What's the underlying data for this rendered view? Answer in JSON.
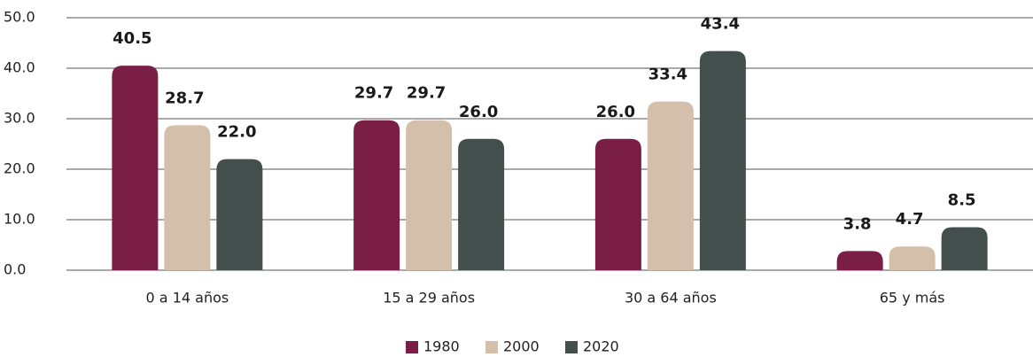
{
  "chart_data": {
    "type": "bar",
    "categories": [
      "0 a 14 años",
      "15 a 29 años",
      "30 a 64 años",
      "65 y más"
    ],
    "series": [
      {
        "name": "1980",
        "color": "#7b1e45",
        "values": [
          40.5,
          29.7,
          26.0,
          3.8
        ],
        "value_labels": [
          "40.5",
          "29.7",
          "26.0",
          "3.8"
        ]
      },
      {
        "name": "2000",
        "color": "#d4bfab",
        "values": [
          28.7,
          29.7,
          33.4,
          4.7
        ],
        "value_labels": [
          "28.7",
          "29.7",
          "33.4",
          "4.7"
        ]
      },
      {
        "name": "2020",
        "color": "#434f4d",
        "values": [
          22.0,
          26.0,
          43.4,
          8.5
        ],
        "value_labels": [
          "22.0",
          "26.0",
          "43.4",
          "8.5"
        ]
      }
    ],
    "ylim": [
      0,
      50
    ],
    "yticks": [
      {
        "value": 0,
        "label": "0.0"
      },
      {
        "value": 10,
        "label": "10.0"
      },
      {
        "value": 20,
        "label": "20.0"
      },
      {
        "value": 30,
        "label": "30.0"
      },
      {
        "value": 40,
        "label": "40.0"
      },
      {
        "value": 50,
        "label": "50.0"
      }
    ],
    "grid": true,
    "legend": "bottom"
  }
}
